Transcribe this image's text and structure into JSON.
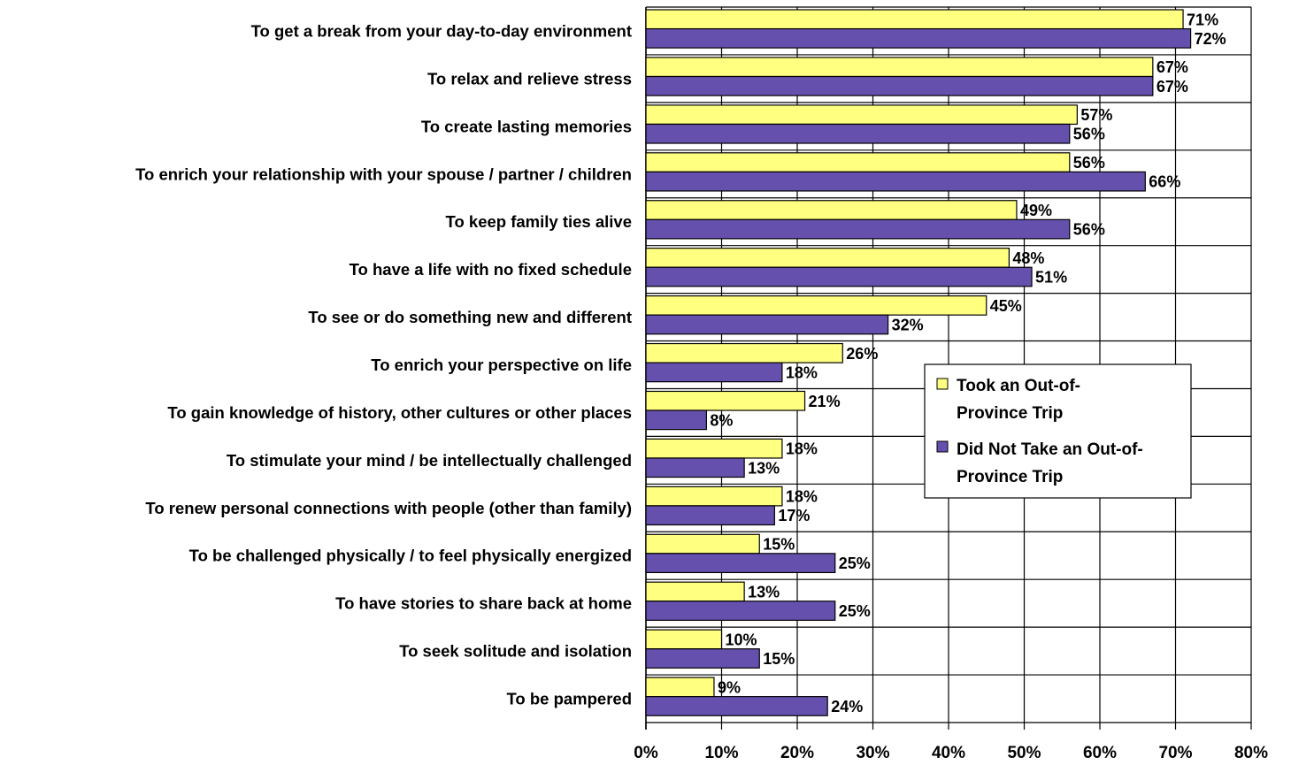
{
  "chart_data": {
    "type": "bar",
    "orientation": "horizontal",
    "title": "",
    "xlabel": "",
    "ylabel": "",
    "xlim": [
      0,
      80
    ],
    "x_ticks": [
      "0%",
      "10%",
      "20%",
      "30%",
      "40%",
      "50%",
      "60%",
      "70%",
      "80%"
    ],
    "grid": true,
    "legend_position": "center-right",
    "categories": [
      "To get a break from your day-to-day environment",
      "To relax and relieve stress",
      "To create lasting memories",
      "To enrich your relationship with your spouse / partner / children",
      "To keep family ties alive",
      "To have a life with no fixed schedule",
      "To see or do something new and different",
      "To enrich your perspective on life",
      "To gain knowledge of history, other cultures or other places",
      "To stimulate your mind / be intellectually challenged",
      "To renew personal connections with people (other than family)",
      "To be challenged physically / to feel physically energized",
      "To have stories to share back at home",
      "To seek solitude and isolation",
      "To be pampered"
    ],
    "series": [
      {
        "name": "Took an Out-of-Province Trip",
        "color": "#FFFF80",
        "values": [
          71,
          67,
          57,
          56,
          49,
          48,
          45,
          26,
          21,
          18,
          18,
          15,
          13,
          10,
          9
        ],
        "labels": [
          "71%",
          "67%",
          "57%",
          "56%",
          "49%",
          "48%",
          "45%",
          "26%",
          "21%",
          "18%",
          "18%",
          "15%",
          "13%",
          "10%",
          "9%"
        ]
      },
      {
        "name": "Did Not Take an Out-of-Province Trip",
        "color": "#6650AE",
        "values": [
          72,
          67,
          56,
          66,
          56,
          51,
          32,
          18,
          8,
          13,
          17,
          25,
          25,
          15,
          24
        ],
        "labels": [
          "72%",
          "67%",
          "56%",
          "66%",
          "56%",
          "51%",
          "32%",
          "18%",
          "8%",
          "13%",
          "17%",
          "25%",
          "25%",
          "15%",
          "24%"
        ]
      }
    ],
    "legend_lines": [
      [
        "Took an Out-of-",
        "Province Trip"
      ],
      [
        "Did Not Take an Out-of-",
        "Province Trip"
      ]
    ]
  }
}
